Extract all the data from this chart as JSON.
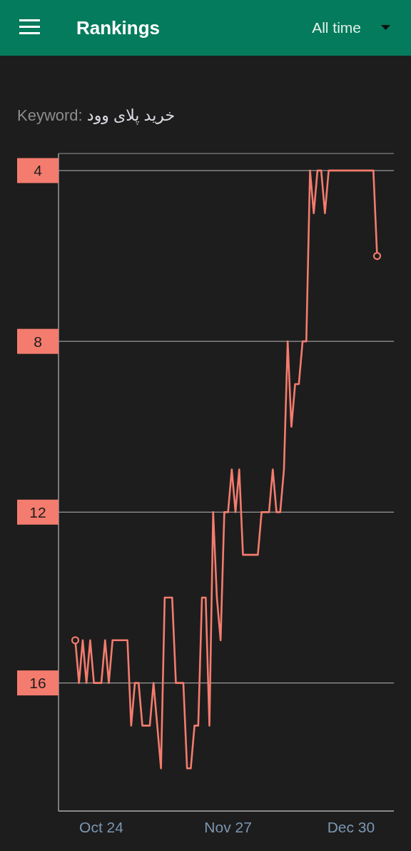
{
  "chart_data": {
    "type": "line",
    "title": "Rankings",
    "subtitle": "Keyword: خرید پلای وود",
    "annotations": [
      "All time"
    ],
    "categories": [
      null,
      null,
      null,
      null,
      null,
      null,
      null,
      null,
      null,
      null,
      null,
      "Oct 24",
      null,
      null,
      null,
      null,
      null,
      null,
      null,
      null,
      null,
      null,
      null,
      null,
      null,
      null,
      null,
      null,
      null,
      null,
      null,
      null,
      null,
      null,
      null,
      null,
      null,
      null,
      null,
      null,
      null,
      null,
      null,
      null,
      null,
      "Nov 27",
      null,
      null,
      null,
      null,
      null,
      null,
      null,
      null,
      null,
      null,
      null,
      null,
      null,
      null,
      null,
      null,
      null,
      null,
      null,
      null,
      null,
      null,
      null,
      null,
      null,
      null,
      null,
      null,
      null,
      null,
      null,
      null,
      "Dec 30",
      null,
      null,
      null,
      null,
      null,
      null,
      null,
      null,
      null,
      null,
      null
    ],
    "series": [
      {
        "color": "#f47c6e",
        "values": [
          null,
          null,
          null,
          null,
          15,
          16,
          15,
          16,
          15,
          16,
          16,
          16,
          15,
          16,
          15,
          15,
          15,
          15,
          15,
          17,
          16,
          16,
          17,
          17,
          17,
          16,
          17,
          18,
          14,
          14,
          14,
          16,
          16,
          16,
          18,
          18,
          17,
          17,
          14,
          14,
          17,
          12,
          14,
          15,
          12,
          12,
          11,
          12,
          11,
          13,
          13,
          13,
          13,
          13,
          12,
          12,
          12,
          11,
          12,
          12,
          11,
          8,
          10,
          9,
          9,
          8,
          8,
          4,
          5,
          4,
          4,
          5,
          4,
          4,
          4,
          4,
          4,
          4,
          4,
          4,
          4,
          4,
          4,
          4,
          4,
          6,
          null,
          null,
          null,
          null
        ]
      },
      {
        "type": "scatter",
        "color": "#f47c6e",
        "marker": "circle",
        "values": [
          null,
          null,
          null,
          null,
          15,
          null,
          null,
          null,
          null,
          null,
          null,
          null,
          null,
          null,
          null,
          null,
          null,
          null,
          null,
          null,
          null,
          null,
          null,
          null,
          null,
          null,
          null,
          null,
          null,
          null,
          null,
          null,
          null,
          null,
          null,
          null,
          null,
          null,
          null,
          null,
          null,
          null,
          null,
          null,
          null,
          null,
          null,
          null,
          null,
          null,
          null,
          null,
          null,
          null,
          null,
          null,
          null,
          null,
          null,
          null,
          null,
          null,
          null,
          null,
          null,
          null,
          null,
          null,
          null,
          null,
          null,
          null,
          null,
          null,
          null,
          null,
          null,
          null,
          null,
          null,
          null,
          null,
          null,
          null,
          null,
          6,
          null,
          null,
          null,
          null
        ]
      }
    ],
    "ylim": [
      19,
      3.6
    ],
    "yticks": [
      4,
      8,
      12,
      16
    ],
    "grid": "y",
    "line_style": "solid"
  }
}
